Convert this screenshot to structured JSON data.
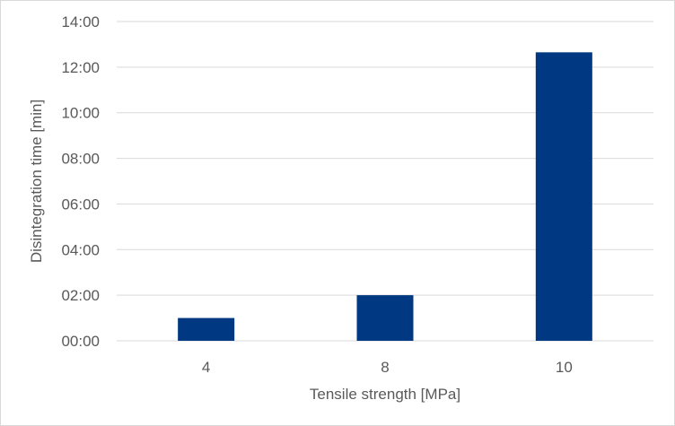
{
  "chart_data": {
    "type": "bar",
    "categories": [
      "4",
      "8",
      "10"
    ],
    "values_minutes": [
      1.0,
      2.0,
      12.65
    ],
    "xlabel": "Tensile strength [MPa]",
    "ylabel": "Disintegration time [min]",
    "ylim_minutes": [
      0,
      14
    ],
    "ytick_labels": [
      "00:00",
      "02:00",
      "04:00",
      "06:00",
      "08:00",
      "10:00",
      "12:00",
      "14:00"
    ],
    "ytick_values_minutes": [
      0,
      2,
      4,
      6,
      8,
      10,
      12,
      14
    ],
    "grid": "horizontal",
    "bar_color": "#003882",
    "grid_color": "#d9d9d9"
  }
}
